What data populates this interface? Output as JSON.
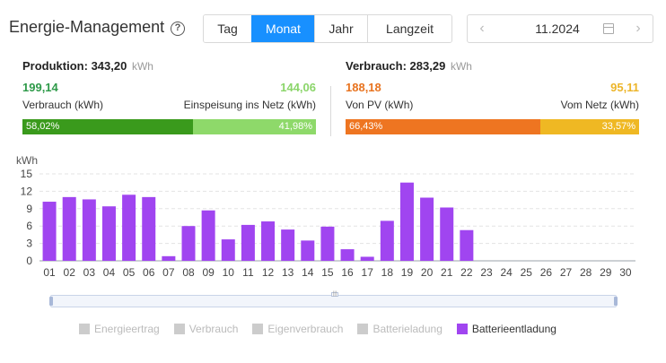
{
  "header": {
    "title": "Energie-Management",
    "help_icon": "?",
    "tabs": [
      {
        "label": "Tag",
        "active": false
      },
      {
        "label": "Monat",
        "active": true
      },
      {
        "label": "Jahr",
        "active": false
      },
      {
        "label": "Langzeit",
        "active": false
      }
    ],
    "date": "11.2024",
    "prev_icon": "chevron-left-icon",
    "next_icon": "chevron-right-icon"
  },
  "production": {
    "title": "Produktion:",
    "total": "343,20",
    "unit": "kWh",
    "left_value": "199,14",
    "right_value": "144,06",
    "left_label": "Verbrauch (kWh)",
    "right_label": "Einspeisung ins Netz (kWh)",
    "left_pct": "58,02%",
    "right_pct": "41,98%",
    "left_fraction": 0.5802,
    "colors": {
      "left_text": "#2e9a49",
      "right_text": "#8bd56a",
      "left_bar": "#3a9a1c",
      "right_bar": "#8ed96a"
    }
  },
  "consumption": {
    "title": "Verbrauch:",
    "total": "283,29",
    "unit": "kWh",
    "left_value": "188,18",
    "right_value": "95,11",
    "left_label": "Von PV (kWh)",
    "right_label": "Vom Netz (kWh)",
    "left_pct": "66,43%",
    "right_pct": "33,57%",
    "left_fraction": 0.6643,
    "colors": {
      "left_text": "#e8731f",
      "right_text": "#ecb52a",
      "left_bar": "#ee7521",
      "right_bar": "#efb823"
    }
  },
  "chart_data": {
    "type": "bar",
    "ylabel": "kWh",
    "ylim": [
      0,
      15
    ],
    "yticks": [
      0,
      3,
      6,
      9,
      12,
      15
    ],
    "grid": true,
    "categories": [
      "01",
      "02",
      "03",
      "04",
      "05",
      "06",
      "07",
      "08",
      "09",
      "10",
      "11",
      "12",
      "13",
      "14",
      "15",
      "16",
      "17",
      "18",
      "19",
      "20",
      "21",
      "22",
      "23",
      "24",
      "25",
      "26",
      "27",
      "28",
      "29",
      "30"
    ],
    "series": [
      {
        "name": "Batterieentladung",
        "color": "#a045f0",
        "values": [
          10.2,
          11.0,
          10.6,
          9.4,
          11.4,
          11.0,
          0.8,
          6.0,
          8.7,
          3.7,
          6.2,
          6.8,
          5.4,
          3.5,
          5.9,
          2.0,
          0.7,
          6.9,
          13.5,
          10.9,
          9.2,
          5.3,
          0,
          0,
          0,
          0,
          0,
          0,
          0,
          0
        ]
      }
    ]
  },
  "legend": [
    {
      "label": "Energieertrag",
      "active": false,
      "color": "#cccccc"
    },
    {
      "label": "Verbrauch",
      "active": false,
      "color": "#cccccc"
    },
    {
      "label": "Eigenverbrauch",
      "active": false,
      "color": "#cccccc"
    },
    {
      "label": "Batterieladung",
      "active": false,
      "color": "#cccccc"
    },
    {
      "label": "Batterieentladung",
      "active": true,
      "color": "#a045f0"
    }
  ]
}
